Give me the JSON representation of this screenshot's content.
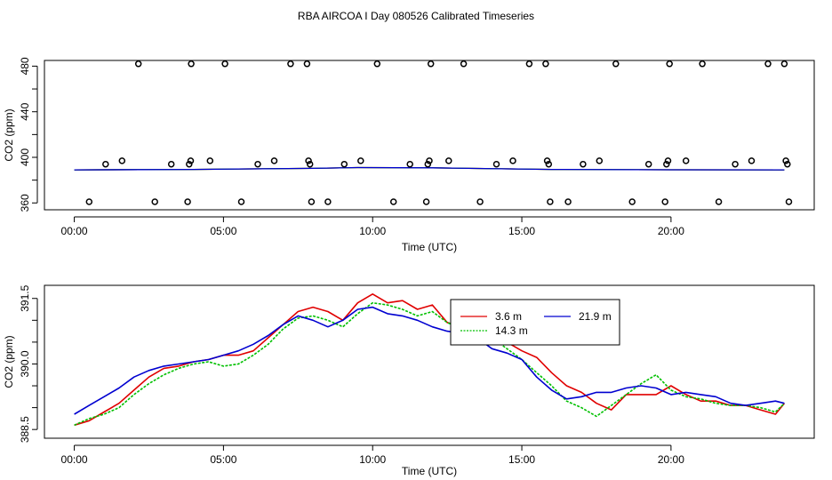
{
  "page_title": "RBA AIRCOA I  Day 080526  Calibrated Timeseries",
  "colors": {
    "red": "#e00000",
    "green": "#00c000",
    "blue": "#0000d0",
    "axis": "#000000"
  },
  "chart_data": [
    {
      "type": "scatter+line",
      "xlabel": "Time (UTC)",
      "ylabel": "CO2 (ppm)",
      "xlim": [
        -1.0,
        24.8
      ],
      "ylim": [
        354,
        485
      ],
      "x_ticks": [
        0,
        5,
        10,
        15,
        20
      ],
      "x_tick_labels": [
        "00:00",
        "05:00",
        "10:00",
        "15:00",
        "20:00"
      ],
      "y_ticks": [
        360,
        380,
        400,
        420,
        440,
        460,
        480
      ],
      "y_tick_labels": [
        "360",
        "",
        "400",
        "440",
        "480"
      ],
      "y_tick_label_values": [
        360,
        380,
        400,
        440,
        480
      ],
      "markers": [
        {
          "x": 0.5,
          "y": 361
        },
        {
          "x": 1.05,
          "y": 394
        },
        {
          "x": 1.6,
          "y": 397
        },
        {
          "x": 2.15,
          "y": 482
        },
        {
          "x": 2.7,
          "y": 361
        },
        {
          "x": 3.25,
          "y": 394
        },
        {
          "x": 3.8,
          "y": 361
        },
        {
          "x": 3.85,
          "y": 394
        },
        {
          "x": 3.9,
          "y": 397
        },
        {
          "x": 3.92,
          "y": 482
        },
        {
          "x": 4.55,
          "y": 397
        },
        {
          "x": 5.05,
          "y": 482
        },
        {
          "x": 5.6,
          "y": 361
        },
        {
          "x": 6.15,
          "y": 394
        },
        {
          "x": 6.7,
          "y": 397
        },
        {
          "x": 7.25,
          "y": 482
        },
        {
          "x": 7.8,
          "y": 482
        },
        {
          "x": 7.85,
          "y": 397
        },
        {
          "x": 7.9,
          "y": 394
        },
        {
          "x": 7.95,
          "y": 361
        },
        {
          "x": 8.5,
          "y": 361
        },
        {
          "x": 9.05,
          "y": 394
        },
        {
          "x": 9.6,
          "y": 397
        },
        {
          "x": 10.15,
          "y": 482
        },
        {
          "x": 10.7,
          "y": 361
        },
        {
          "x": 11.25,
          "y": 394
        },
        {
          "x": 11.8,
          "y": 361
        },
        {
          "x": 11.85,
          "y": 394
        },
        {
          "x": 11.9,
          "y": 397
        },
        {
          "x": 11.95,
          "y": 482
        },
        {
          "x": 12.55,
          "y": 397
        },
        {
          "x": 13.05,
          "y": 482
        },
        {
          "x": 13.6,
          "y": 361
        },
        {
          "x": 14.15,
          "y": 394
        },
        {
          "x": 14.7,
          "y": 397
        },
        {
          "x": 15.25,
          "y": 482
        },
        {
          "x": 15.8,
          "y": 482
        },
        {
          "x": 15.85,
          "y": 397
        },
        {
          "x": 15.9,
          "y": 394
        },
        {
          "x": 15.95,
          "y": 361
        },
        {
          "x": 16.55,
          "y": 361
        },
        {
          "x": 17.05,
          "y": 394
        },
        {
          "x": 17.6,
          "y": 397
        },
        {
          "x": 18.15,
          "y": 482
        },
        {
          "x": 18.7,
          "y": 361
        },
        {
          "x": 19.25,
          "y": 394
        },
        {
          "x": 19.8,
          "y": 361
        },
        {
          "x": 19.85,
          "y": 394
        },
        {
          "x": 19.9,
          "y": 397
        },
        {
          "x": 19.95,
          "y": 482
        },
        {
          "x": 20.5,
          "y": 397
        },
        {
          "x": 21.05,
          "y": 482
        },
        {
          "x": 21.6,
          "y": 361
        },
        {
          "x": 22.15,
          "y": 394
        },
        {
          "x": 22.7,
          "y": 397
        },
        {
          "x": 23.25,
          "y": 482
        },
        {
          "x": 23.8,
          "y": 482
        },
        {
          "x": 23.85,
          "y": 397
        },
        {
          "x": 23.9,
          "y": 394
        },
        {
          "x": 23.95,
          "y": 361
        }
      ],
      "lines": [
        {
          "name": "3.6 m",
          "color": "#e00000",
          "x": [
            0,
            4,
            8,
            9.5,
            12,
            16,
            20,
            23.8
          ],
          "values": [
            389.0,
            389.4,
            390.3,
            391.0,
            390.8,
            389.4,
            389.1,
            389.0
          ]
        },
        {
          "name": "14.3 m",
          "color": "#00c000",
          "x": [
            0,
            4,
            8,
            9.5,
            12,
            16,
            20,
            23.8
          ],
          "values": [
            389.0,
            389.4,
            390.3,
            391.0,
            390.8,
            389.4,
            389.1,
            389.0
          ]
        },
        {
          "name": "21.9 m",
          "color": "#0000d0",
          "x": [
            0,
            4,
            8,
            9.5,
            12,
            16,
            20,
            23.8
          ],
          "values": [
            389.0,
            389.4,
            390.3,
            391.0,
            390.8,
            389.4,
            389.1,
            389.0
          ]
        }
      ]
    },
    {
      "type": "line",
      "xlabel": "Time (UTC)",
      "ylabel": "CO2 (ppm)",
      "xlim": [
        -1.0,
        24.8
      ],
      "ylim": [
        388.3,
        391.8
      ],
      "x_ticks": [
        0,
        5,
        10,
        15,
        20
      ],
      "x_tick_labels": [
        "00:00",
        "05:00",
        "10:00",
        "15:00",
        "20:00"
      ],
      "y_ticks": [
        388.5,
        389.0,
        389.5,
        390.0,
        390.5,
        391.0,
        391.5
      ],
      "y_tick_labels": [
        "388.5",
        "390.0",
        "391.5"
      ],
      "y_tick_label_values": [
        388.5,
        390.0,
        391.5
      ],
      "legend": {
        "placement": "top-right",
        "entries": [
          "3.6 m",
          "21.9 m",
          "14.3 m"
        ]
      },
      "series": [
        {
          "name": "3.6 m",
          "color": "#e00000",
          "x": [
            0,
            0.5,
            1,
            1.5,
            2,
            2.5,
            3,
            3.5,
            4,
            4.5,
            5,
            5.5,
            6,
            6.5,
            7,
            7.5,
            8,
            8.5,
            9,
            9.5,
            10,
            10.5,
            11,
            11.5,
            12,
            12.5,
            13,
            13.5,
            14,
            14.5,
            15,
            15.5,
            16,
            16.5,
            17,
            17.5,
            18,
            18.5,
            19,
            19.5,
            20,
            20.5,
            21,
            21.5,
            22,
            22.5,
            23,
            23.5,
            23.8
          ],
          "values": [
            388.6,
            388.7,
            388.9,
            389.1,
            389.4,
            389.7,
            389.9,
            389.95,
            390.05,
            390.1,
            390.2,
            390.2,
            390.3,
            390.6,
            390.9,
            391.2,
            391.3,
            391.2,
            391.0,
            391.4,
            391.6,
            391.4,
            391.45,
            391.25,
            391.35,
            390.95,
            390.85,
            390.75,
            390.6,
            390.5,
            390.3,
            390.15,
            389.8,
            389.5,
            389.35,
            389.1,
            388.95,
            389.3,
            389.3,
            389.3,
            389.5,
            389.3,
            389.15,
            389.15,
            389.05,
            389.05,
            388.95,
            388.85,
            389.1
          ]
        },
        {
          "name": "14.3 m",
          "color": "#00c000",
          "x": [
            0,
            0.5,
            1,
            1.5,
            2,
            2.5,
            3,
            3.5,
            4,
            4.5,
            5,
            5.5,
            6,
            6.5,
            7,
            7.5,
            8,
            8.5,
            9,
            9.5,
            10,
            10.5,
            11,
            11.5,
            12,
            12.5,
            13,
            13.5,
            14,
            14.5,
            15,
            15.5,
            16,
            16.5,
            17,
            17.5,
            18,
            18.5,
            19,
            19.5,
            20,
            20.5,
            21,
            21.5,
            22,
            22.5,
            23,
            23.5,
            23.8
          ],
          "values": [
            388.6,
            388.75,
            388.85,
            389.0,
            389.3,
            389.55,
            389.75,
            389.9,
            390.0,
            390.05,
            389.95,
            390.0,
            390.2,
            390.45,
            390.8,
            391.05,
            391.1,
            391.0,
            390.85,
            391.15,
            391.4,
            391.35,
            391.25,
            391.1,
            391.2,
            390.95,
            390.8,
            390.7,
            390.6,
            390.35,
            390.1,
            389.8,
            389.5,
            389.15,
            389.0,
            388.8,
            389.05,
            389.3,
            389.55,
            389.75,
            389.4,
            389.25,
            389.2,
            389.1,
            389.05,
            389.05,
            389.0,
            388.9,
            389.1
          ]
        },
        {
          "name": "21.9 m",
          "color": "#0000d0",
          "x": [
            0,
            0.5,
            1,
            1.5,
            2,
            2.5,
            3,
            3.5,
            4,
            4.5,
            5,
            5.5,
            6,
            6.5,
            7,
            7.5,
            8,
            8.5,
            9,
            9.5,
            10,
            10.5,
            11,
            11.5,
            12,
            12.5,
            13,
            13.5,
            14,
            14.5,
            15,
            15.5,
            16,
            16.5,
            17,
            17.5,
            18,
            18.5,
            19,
            19.5,
            20,
            20.5,
            21,
            21.5,
            22,
            22.5,
            23,
            23.5,
            23.8
          ],
          "values": [
            388.85,
            389.05,
            389.25,
            389.45,
            389.7,
            389.85,
            389.95,
            390.0,
            390.05,
            390.1,
            390.2,
            390.3,
            390.45,
            390.65,
            390.9,
            391.1,
            391.0,
            390.85,
            391.0,
            391.25,
            391.3,
            391.15,
            391.1,
            391.0,
            390.85,
            390.75,
            390.7,
            390.6,
            390.35,
            390.25,
            390.1,
            389.7,
            389.4,
            389.2,
            389.25,
            389.35,
            389.35,
            389.45,
            389.5,
            389.45,
            389.3,
            389.35,
            389.3,
            389.25,
            389.1,
            389.05,
            389.1,
            389.15,
            389.1
          ]
        }
      ]
    }
  ]
}
